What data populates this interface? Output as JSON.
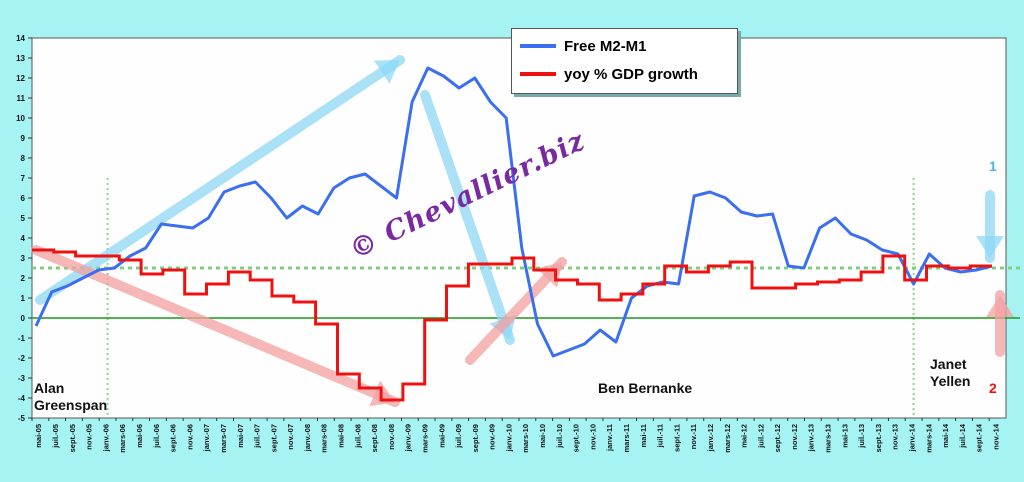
{
  "chart_data": {
    "type": "line",
    "y_ticks": [
      "14",
      "13",
      "12",
      "11",
      "10",
      "9",
      "8",
      "7",
      "6",
      "5",
      "4",
      "3",
      "2",
      "1",
      "0",
      "-1",
      "-2",
      "-3",
      "-4",
      "-5"
    ],
    "ylim": [
      -5,
      14
    ],
    "x_tick_labels": [
      "mai-05",
      "juil.-05",
      "sept.-05",
      "nov.-05",
      "janv.-06",
      "mars-06",
      "mai-06",
      "juil.-06",
      "sept.-06",
      "nov.-06",
      "janv.-07",
      "mars-07",
      "mai-07",
      "juil.-07",
      "sept.-07",
      "nov.-07",
      "janv.-08",
      "mars-08",
      "mai-08",
      "juil.-08",
      "sept.-08",
      "nov.-08",
      "janv.-09",
      "mars-09",
      "mai-09",
      "juil.-09",
      "sept.-09",
      "nov.-09",
      "janv.-10",
      "mars-10",
      "mai-10",
      "juil.-10",
      "sept.-10",
      "nov.-10",
      "janv.-11",
      "mars-11",
      "mai-11",
      "juil.-11",
      "sept.-11",
      "nov.-11",
      "janv.-12",
      "mars-12",
      "mai-12",
      "juil.-12",
      "sept.-12",
      "nov.-12",
      "janv.-13",
      "mars-13",
      "mai-13",
      "juil.-13",
      "sept.-13",
      "nov.-13",
      "janv.-14",
      "mars-14",
      "mai-14",
      "juil.-14",
      "sept.-14",
      "nov.-14"
    ],
    "series": [
      {
        "name": "Free M2-M1",
        "color": "#3b6ff0",
        "values": [
          -0.4,
          1.3,
          1.6,
          2.0,
          2.4,
          2.5,
          3.1,
          3.5,
          4.7,
          4.6,
          4.5,
          5.0,
          6.3,
          6.6,
          6.8,
          6.0,
          5.0,
          5.6,
          5.2,
          6.5,
          7.0,
          7.2,
          6.6,
          6.0,
          10.8,
          12.5,
          12.1,
          11.5,
          12.0,
          10.8,
          10.0,
          3.5,
          -0.3,
          -1.9,
          -1.6,
          -1.3,
          -0.6,
          -1.2,
          1.0,
          1.6,
          1.8,
          1.7,
          6.1,
          6.3,
          6.0,
          5.3,
          5.1,
          5.2,
          2.6,
          2.5,
          4.5,
          5.0,
          4.2,
          3.9,
          3.4,
          3.2,
          1.7,
          3.2,
          2.5,
          2.3,
          2.4,
          2.6
        ]
      },
      {
        "name": "yoy % GDP growth",
        "color": "#ee1111",
        "steps": [
          3.4,
          3.3,
          3.1,
          3.1,
          2.9,
          2.2,
          2.4,
          1.2,
          1.7,
          2.3,
          1.9,
          1.1,
          0.8,
          -0.3,
          -2.8,
          -3.5,
          -4.1,
          -3.3,
          -0.1,
          1.6,
          2.7,
          2.7,
          3.0,
          2.4,
          1.9,
          1.7,
          0.9,
          1.2,
          1.7,
          2.6,
          2.3,
          2.6,
          2.8,
          1.5,
          1.5,
          1.7,
          1.8,
          1.9,
          2.3,
          3.1,
          1.9,
          2.6,
          2.5,
          2.6
        ]
      }
    ],
    "reference_lines": [
      {
        "name": "zero-line",
        "value": 0,
        "color": "#1a9a1a"
      },
      {
        "name": "target-line",
        "value": 2.5,
        "color": "#7ed07e"
      }
    ],
    "annotations": {
      "greenspan": "Alan\nGreenspan",
      "bernanke": "Ben Bernanke",
      "yellen": "Janet\nYellen",
      "marker1": "1",
      "marker2": "2",
      "watermark": "© Chevallier.biz"
    }
  }
}
